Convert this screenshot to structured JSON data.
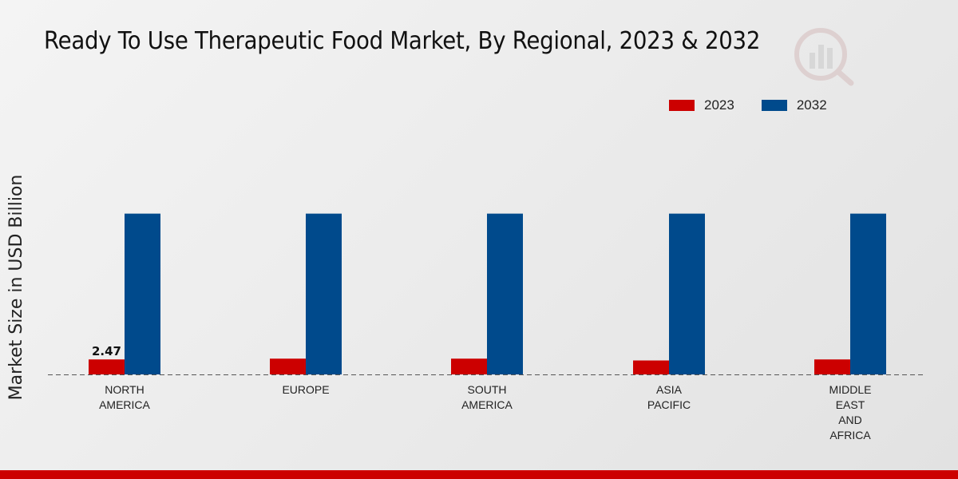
{
  "chart_data": {
    "type": "bar",
    "title": "Ready To Use Therapeutic Food Market, By Regional, 2023 & 2032",
    "ylabel": "Market Size in USD Billion",
    "xlabel": "",
    "categories": [
      "NORTH\nAMERICA",
      "EUROPE",
      "SOUTH\nAMERICA",
      "ASIA\nPACIFIC",
      "MIDDLE\nEAST\nAND\nAFRICA"
    ],
    "series": [
      {
        "name": "2023",
        "color": "#cc0000",
        "values": [
          2.47,
          2.6,
          2.6,
          2.3,
          2.47
        ]
      },
      {
        "name": "2032",
        "color": "#004a8c",
        "values": [
          26.5,
          26.5,
          26.5,
          26.5,
          26.5
        ]
      }
    ],
    "data_labels": [
      {
        "series": 0,
        "index": 0,
        "text": "2.47"
      }
    ],
    "ylim": [
      0,
      40
    ],
    "legend_position": "top-right"
  }
}
